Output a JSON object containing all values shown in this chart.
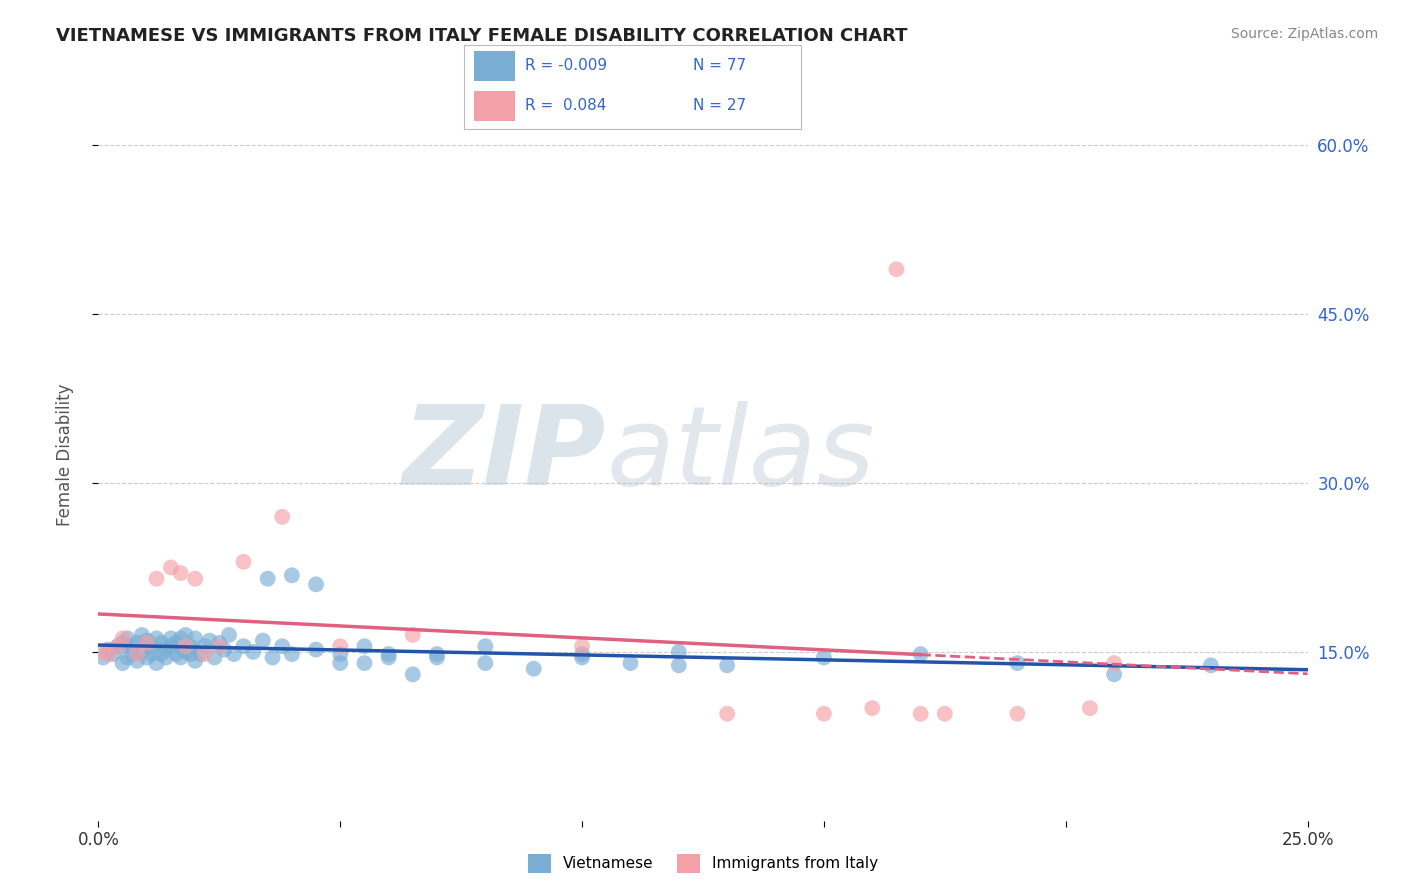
{
  "title": "VIETNAMESE VS IMMIGRANTS FROM ITALY FEMALE DISABILITY CORRELATION CHART",
  "source": "Source: ZipAtlas.com",
  "ylabel": "Female Disability",
  "xlim": [
    0.0,
    0.25
  ],
  "ylim": [
    0.0,
    0.65
  ],
  "xticks": [
    0.0,
    0.05,
    0.1,
    0.15,
    0.2,
    0.25
  ],
  "xtick_labels": [
    "0.0%",
    "",
    "",
    "",
    "",
    "25.0%"
  ],
  "ytick_vals_right": [
    0.15,
    0.3,
    0.45,
    0.6
  ],
  "ytick_labels_right": [
    "15.0%",
    "30.0%",
    "45.0%",
    "60.0%"
  ],
  "grid_color": "#cccccc",
  "background_color": "#ffffff",
  "color_blue": "#7aadd4",
  "color_blue_line": "#2255aa",
  "color_pink": "#f4a0a8",
  "color_pink_line": "#e06080",
  "color_text_blue": "#3366cc",
  "legend_r1": "R = -0.009",
  "legend_n1": "N = 77",
  "legend_r2": "R =  0.084",
  "legend_n2": "N = 27",
  "vietnamese_x": [
    0.001,
    0.002,
    0.003,
    0.004,
    0.005,
    0.005,
    0.006,
    0.006,
    0.007,
    0.007,
    0.008,
    0.008,
    0.009,
    0.009,
    0.01,
    0.01,
    0.011,
    0.011,
    0.012,
    0.012,
    0.013,
    0.013,
    0.014,
    0.014,
    0.015,
    0.015,
    0.016,
    0.016,
    0.017,
    0.017,
    0.018,
    0.018,
    0.019,
    0.019,
    0.02,
    0.02,
    0.021,
    0.022,
    0.023,
    0.024,
    0.025,
    0.026,
    0.027,
    0.028,
    0.03,
    0.032,
    0.034,
    0.036,
    0.038,
    0.04,
    0.045,
    0.05,
    0.055,
    0.06,
    0.065,
    0.07,
    0.08,
    0.09,
    0.1,
    0.11,
    0.12,
    0.13,
    0.15,
    0.17,
    0.19,
    0.21,
    0.23,
    0.035,
    0.04,
    0.045,
    0.05,
    0.055,
    0.06,
    0.07,
    0.08,
    0.1,
    0.12
  ],
  "vietnamese_y": [
    0.145,
    0.152,
    0.148,
    0.155,
    0.14,
    0.158,
    0.145,
    0.162,
    0.148,
    0.155,
    0.142,
    0.158,
    0.15,
    0.165,
    0.145,
    0.16,
    0.148,
    0.155,
    0.14,
    0.162,
    0.148,
    0.158,
    0.145,
    0.152,
    0.155,
    0.162,
    0.148,
    0.158,
    0.145,
    0.162,
    0.15,
    0.165,
    0.148,
    0.155,
    0.142,
    0.162,
    0.148,
    0.155,
    0.16,
    0.145,
    0.158,
    0.152,
    0.165,
    0.148,
    0.155,
    0.15,
    0.16,
    0.145,
    0.155,
    0.148,
    0.152,
    0.14,
    0.155,
    0.148,
    0.13,
    0.145,
    0.155,
    0.135,
    0.148,
    0.14,
    0.15,
    0.138,
    0.145,
    0.148,
    0.14,
    0.13,
    0.138,
    0.215,
    0.218,
    0.21,
    0.148,
    0.14,
    0.145,
    0.148,
    0.14,
    0.145,
    0.138
  ],
  "italy_x": [
    0.001,
    0.002,
    0.004,
    0.005,
    0.008,
    0.01,
    0.012,
    0.015,
    0.017,
    0.018,
    0.02,
    0.022,
    0.025,
    0.03,
    0.038,
    0.05,
    0.065,
    0.1,
    0.13,
    0.15,
    0.16,
    0.165,
    0.17,
    0.175,
    0.19,
    0.205,
    0.21
  ],
  "italy_y": [
    0.15,
    0.148,
    0.155,
    0.162,
    0.148,
    0.158,
    0.215,
    0.225,
    0.22,
    0.155,
    0.215,
    0.148,
    0.155,
    0.23,
    0.27,
    0.155,
    0.165,
    0.155,
    0.095,
    0.095,
    0.1,
    0.49,
    0.095,
    0.095,
    0.095,
    0.1,
    0.14
  ]
}
